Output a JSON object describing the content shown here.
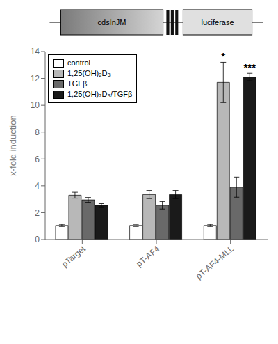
{
  "chart_data": {
    "type": "bar",
    "categories": [
      "pTarget",
      "pT-AF4",
      "pT-AF4-MLL"
    ],
    "series": [
      {
        "name": "control",
        "color": "#ffffff",
        "values": [
          1.05,
          1.05,
          1.05
        ],
        "errors": [
          0.08,
          0.08,
          0.08
        ]
      },
      {
        "name": "1,25(OH)₂D₃",
        "color": "#b8b8b8",
        "values": [
          3.3,
          3.35,
          11.7
        ],
        "errors": [
          0.22,
          0.3,
          1.5
        ]
      },
      {
        "name": "TGFβ",
        "color": "#696969",
        "values": [
          2.95,
          2.55,
          3.9
        ],
        "errors": [
          0.18,
          0.28,
          0.75
        ]
      },
      {
        "name": "1,25(OH)₂D₃/TGFβ",
        "color": "#1a1a1a",
        "values": [
          2.55,
          3.35,
          12.1
        ],
        "errors": [
          0.12,
          0.3,
          0.28
        ]
      }
    ],
    "y_label": "x-fold induction",
    "ylim": [
      0,
      14
    ],
    "yticks": [
      0,
      2,
      4,
      6,
      8,
      10,
      12,
      14
    ],
    "grid": false,
    "legend": "upper left",
    "annotations": [
      {
        "text": "*",
        "category": "pT-AF4-MLL",
        "series": "1,25(OH)₂D₃"
      },
      {
        "text": "***",
        "category": "pT-AF4-MLL",
        "series": "1,25(OH)₂D₃/TGFβ"
      },
      {
        "text": "cdsInJM"
      },
      {
        "text": "luciferase"
      }
    ]
  }
}
